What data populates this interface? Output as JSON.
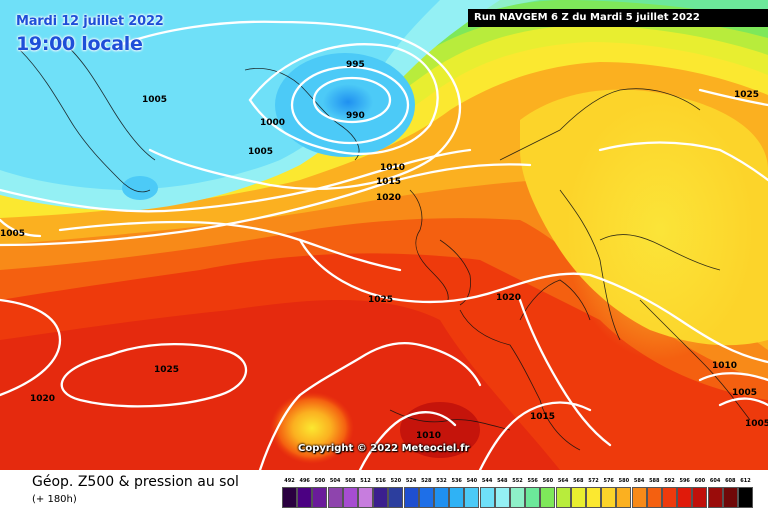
{
  "overlay": {
    "date_line": "Mardi 12 juillet 2022",
    "time_line": "19:00 locale",
    "run_banner": "Run NAVGEM 6 Z du Mardi 5 juillet 2022",
    "copyright": "Copyright © 2022 Meteociel.fr"
  },
  "footer": {
    "product_title": "Géop. Z500 & pression au sol",
    "lead_time": "(+ 180h)"
  },
  "scale": {
    "labels": [
      "492",
      "496",
      "500",
      "504",
      "508",
      "512",
      "516",
      "520",
      "524",
      "528",
      "532",
      "536",
      "540",
      "544",
      "548",
      "552",
      "556",
      "560",
      "564",
      "568",
      "572",
      "576",
      "580",
      "584",
      "588",
      "592",
      "596",
      "600",
      "604",
      "608",
      "612"
    ],
    "colors": [
      "#2a0040",
      "#4b0082",
      "#6a1b9a",
      "#8e44ad",
      "#a64dd1",
      "#c77dde",
      "#3b1f8e",
      "#2c3e9e",
      "#1f4fd0",
      "#1e6fe8",
      "#1f90f0",
      "#2fb2f5",
      "#4ccaf7",
      "#6fe0f8",
      "#94f0f4",
      "#8ef0c8",
      "#6ce89a",
      "#7ee85a",
      "#b8ec3c",
      "#e8ee30",
      "#fbe830",
      "#fcd42a",
      "#fbb020",
      "#f88a18",
      "#f46010",
      "#ee3a0c",
      "#e01a0a",
      "#c0100a",
      "#9a0c0a",
      "#700808",
      "#000000"
    ]
  },
  "map": {
    "isobar_labels": [
      {
        "text": "995"
      },
      {
        "text": "990"
      },
      {
        "text": "1000"
      },
      {
        "text": "1005"
      },
      {
        "text": "1005"
      },
      {
        "text": "1005"
      },
      {
        "text": "1010"
      },
      {
        "text": "1015"
      },
      {
        "text": "1020"
      },
      {
        "text": "1020"
      },
      {
        "text": "1025"
      },
      {
        "text": "1025"
      },
      {
        "text": "1025"
      },
      {
        "text": "1020"
      },
      {
        "text": "1010"
      },
      {
        "text": "1015"
      },
      {
        "text": "1010"
      },
      {
        "text": "1005"
      },
      {
        "text": "1005"
      }
    ]
  }
}
